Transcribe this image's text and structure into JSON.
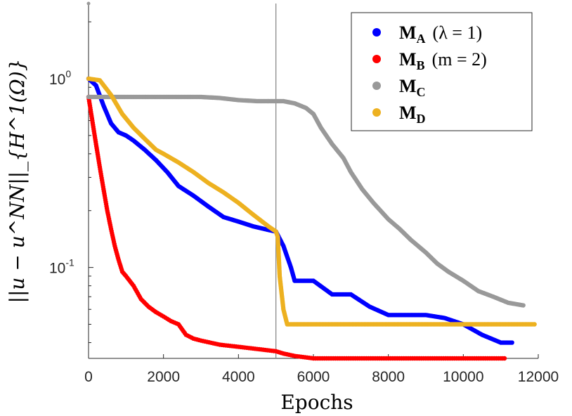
{
  "chart_data": {
    "type": "scatter",
    "xlabel": "Epochs",
    "ylabel": "||u − u^NN||_{H^1(Ω)}",
    "yscale": "log",
    "xlim": [
      0,
      12000
    ],
    "ylim": [
      0.033,
      2.5
    ],
    "xticks": [
      0,
      2000,
      4000,
      6000,
      8000,
      10000,
      12000
    ],
    "ytick_labels": [
      {
        "value": 1,
        "base": "10",
        "exp": "0"
      },
      {
        "value": 0.1,
        "base": "10",
        "exp": "-1"
      }
    ],
    "vline_x": 5000,
    "legend_position": "top-right",
    "series": [
      {
        "name": "M_A (λ = 1)",
        "label_main": "M",
        "label_sub": "A",
        "label_extra": "(λ = 1)",
        "color": "#0000ff",
        "x": [
          0,
          200,
          400,
          600,
          800,
          1000,
          1200,
          1500,
          1800,
          2100,
          2400,
          2800,
          3200,
          3600,
          4000,
          4400,
          4800,
          5000,
          5200,
          5400,
          5500,
          6000,
          6500,
          7000,
          7500,
          8000,
          8500,
          9000,
          9500,
          10000,
          10500,
          11000,
          11300
        ],
        "y": [
          1.0,
          0.92,
          0.72,
          0.58,
          0.52,
          0.5,
          0.47,
          0.42,
          0.37,
          0.32,
          0.27,
          0.24,
          0.21,
          0.185,
          0.175,
          0.165,
          0.158,
          0.155,
          0.13,
          0.1,
          0.085,
          0.085,
          0.072,
          0.072,
          0.062,
          0.056,
          0.056,
          0.056,
          0.054,
          0.05,
          0.044,
          0.04,
          0.04
        ]
      },
      {
        "name": "M_B (m = 2)",
        "label_main": "M",
        "label_sub": "B",
        "label_extra": "(m = 2)",
        "color": "#ff0000",
        "x": [
          0,
          100,
          200,
          300,
          400,
          500,
          600,
          700,
          800,
          900,
          1000,
          1200,
          1400,
          1600,
          1800,
          2000,
          2200,
          2400,
          2600,
          2800,
          3000,
          3500,
          4000,
          4500,
          5000,
          5200,
          5500,
          6000,
          7000,
          8000,
          9000,
          10000,
          11000,
          11100
        ],
        "y": [
          0.8,
          0.6,
          0.45,
          0.34,
          0.26,
          0.2,
          0.16,
          0.13,
          0.11,
          0.095,
          0.09,
          0.08,
          0.068,
          0.062,
          0.058,
          0.055,
          0.052,
          0.05,
          0.044,
          0.042,
          0.041,
          0.039,
          0.038,
          0.037,
          0.036,
          0.035,
          0.034,
          0.033,
          0.033,
          0.033,
          0.033,
          0.033,
          0.033,
          0.033
        ]
      },
      {
        "name": "M_C",
        "label_main": "M",
        "label_sub": "C",
        "label_extra": "",
        "color": "#999999",
        "x": [
          0,
          500,
          1000,
          2000,
          3000,
          3500,
          4000,
          4500,
          5000,
          5200,
          5500,
          5800,
          6000,
          6200,
          6500,
          6800,
          7000,
          7300,
          7600,
          8000,
          8300,
          8600,
          9000,
          9300,
          9600,
          10000,
          10400,
          10800,
          11200,
          11600
        ],
        "y": [
          0.8,
          0.8,
          0.8,
          0.8,
          0.8,
          0.79,
          0.77,
          0.76,
          0.76,
          0.76,
          0.74,
          0.7,
          0.65,
          0.55,
          0.45,
          0.38,
          0.32,
          0.26,
          0.22,
          0.18,
          0.16,
          0.14,
          0.12,
          0.105,
          0.095,
          0.085,
          0.075,
          0.07,
          0.065,
          0.063
        ]
      },
      {
        "name": "M_D",
        "label_main": "M",
        "label_sub": "D",
        "label_extra": "",
        "color": "#edb120",
        "x": [
          0,
          300,
          600,
          900,
          1200,
          1500,
          1800,
          2000,
          2400,
          2800,
          3200,
          3600,
          4000,
          4400,
          4800,
          5000,
          5050,
          5100,
          5200,
          5300,
          5500,
          6000,
          7000,
          8000,
          9000,
          10000,
          11000,
          11900
        ],
        "y": [
          1.0,
          0.98,
          0.82,
          0.65,
          0.55,
          0.48,
          0.42,
          0.4,
          0.36,
          0.32,
          0.28,
          0.25,
          0.22,
          0.19,
          0.165,
          0.155,
          0.145,
          0.09,
          0.06,
          0.05,
          0.05,
          0.05,
          0.05,
          0.05,
          0.05,
          0.05,
          0.05,
          0.05
        ]
      }
    ]
  }
}
